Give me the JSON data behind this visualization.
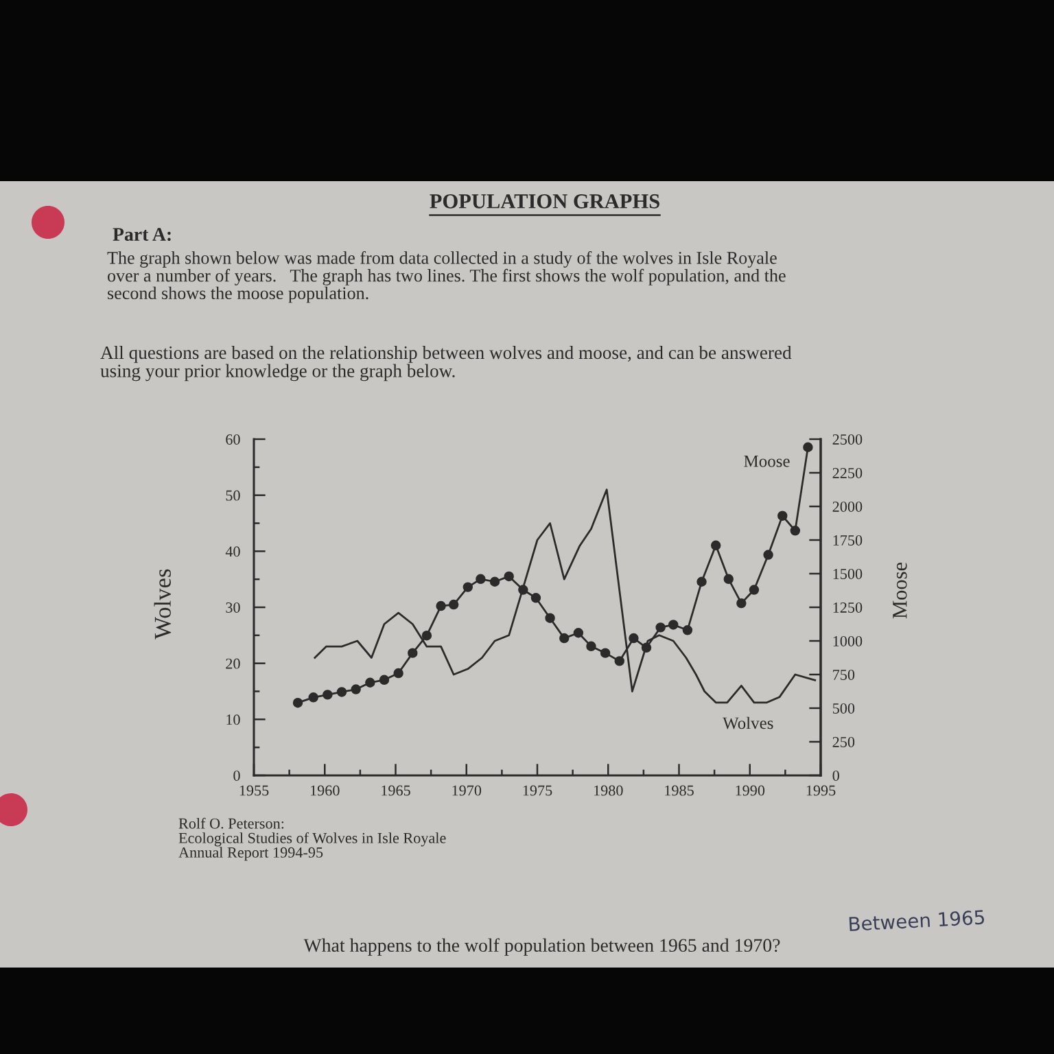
{
  "chart_data": {
    "type": "line",
    "title": "POPULATION GRAPHS",
    "subtitle": "Part A:",
    "ylabel": "Wolves",
    "y2label": "Moose",
    "line_style": "solid",
    "xlim": [
      1955,
      1995
    ],
    "xticks": [
      1955,
      {
        "value": 1957.5,
        "label": null
      },
      1960,
      {
        "value": 1962.5,
        "label": null
      },
      1965,
      {
        "value": 1967.5,
        "label": null
      },
      1970,
      {
        "value": 1972.5,
        "label": null
      },
      1975,
      {
        "value": 1977.5,
        "label": null
      },
      1980,
      {
        "value": 1982.5,
        "label": null
      },
      1985,
      {
        "value": 1987.5,
        "label": null
      },
      1990,
      {
        "value": 1992.5,
        "label": null
      },
      1995
    ],
    "ylim": [
      0,
      60
    ],
    "yticks": [
      0,
      {
        "value": 5,
        "label": null
      },
      10,
      {
        "value": 15,
        "label": null
      },
      20,
      {
        "value": 25,
        "label": null
      },
      30,
      {
        "value": 35,
        "label": null
      },
      40,
      {
        "value": 45,
        "label": null
      },
      50,
      {
        "value": 55,
        "label": null
      },
      60
    ],
    "y2lim": [
      0,
      2500
    ],
    "y2ticks": [
      0,
      250,
      500,
      750,
      1000,
      1250,
      1500,
      1750,
      2000,
      2250,
      2500
    ],
    "series": [
      {
        "name": "Wolves",
        "color": "#2b2b2b",
        "marker": "none",
        "x": [
          1959.3,
          1960.1,
          1961.2,
          1962.3,
          1963.3,
          1964.2,
          1965.2,
          1966.2,
          1967.2,
          1968.2,
          1969.1,
          1970.1,
          1971.1,
          1972.0,
          1973.0,
          1975.0,
          1975.9,
          1976.9,
          1978.0,
          1978.8,
          1979.9,
          1981.7,
          1982.8,
          1983.6,
          1984.6,
          1985.5,
          1986.2,
          1986.8,
          1987.6,
          1988.4,
          1989.4,
          1990.3,
          1991.2,
          1992.1,
          1993.2,
          1994.6
        ],
        "values": [
          21,
          23,
          23,
          24,
          21,
          27,
          29,
          27,
          23,
          23,
          18,
          19,
          21,
          24,
          25,
          42,
          45,
          35,
          41,
          44,
          51,
          15,
          24,
          25,
          24,
          21,
          18,
          15,
          13,
          13,
          16,
          13,
          13,
          14,
          18,
          17
        ]
      },
      {
        "name": "Moose",
        "color": "#2b2b2b",
        "marker": "circle",
        "axis": "y2",
        "x": [
          1958.1,
          1959.2,
          1960.2,
          1961.2,
          1962.2,
          1963.2,
          1964.2,
          1965.2,
          1966.2,
          1967.2,
          1968.2,
          1969.1,
          1970.1,
          1971.0,
          1972.0,
          1973.0,
          1974.0,
          1974.9,
          1975.9,
          1976.9,
          1977.9,
          1978.8,
          1979.8,
          1980.8,
          1981.8,
          1982.7,
          1983.7,
          1984.6,
          1985.6,
          1986.6,
          1987.6,
          1988.5,
          1989.4,
          1990.3,
          1991.3,
          1992.3,
          1993.2,
          1994.1
        ],
        "values": [
          540,
          580,
          600,
          620,
          640,
          690,
          710,
          760,
          910,
          1040,
          1260,
          1270,
          1400,
          1460,
          1440,
          1480,
          1380,
          1320,
          1170,
          1020,
          1060,
          960,
          910,
          850,
          1020,
          950,
          1100,
          1120,
          1080,
          1440,
          1710,
          1460,
          1280,
          1380,
          1640,
          1930,
          1820,
          2440
        ]
      }
    ],
    "annotations": [
      "The graph shown below was made from data collected in a study of the wolves in Isle Royale\nover a number of years.   The graph has two lines. The first shows the wolf population, and the\nsecond shows the moose population.",
      "All questions are based on the relationship between wolves and moose, and can be answered\nusing your prior knowledge or the graph below.",
      "Rolf O. Peterson:\nEcological Studies of Wolves in Isle Royale\nAnnual Report 1994-95",
      "What happens to the wolf population between 1965 and 1970?",
      "Between 1965"
    ]
  }
}
